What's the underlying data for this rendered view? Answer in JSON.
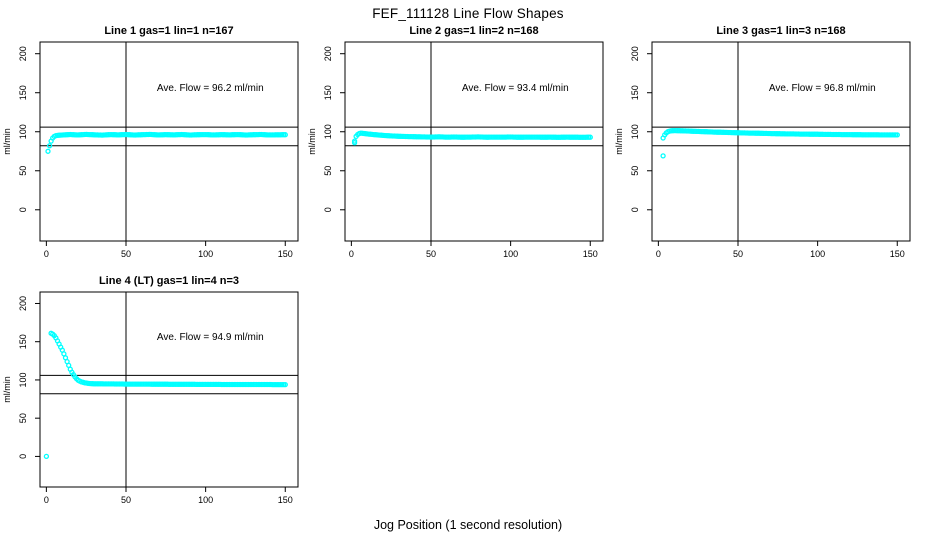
{
  "figure": {
    "title": "FEF_111128  Line Flow Shapes",
    "xlabel": "Jog Position (1 second resolution)"
  },
  "chart_data": {
    "type": "scatter",
    "marker_color": "#00FFFF",
    "line_color": "#000000",
    "shared_axes": {
      "xlim": [
        -4,
        158
      ],
      "ylim": [
        -40,
        215
      ],
      "x_ticks": [
        0,
        50,
        100,
        150
      ],
      "y_ticks": [
        0,
        50,
        100,
        150,
        200
      ],
      "ylabel": "ml/min"
    },
    "ref_lines": {
      "h_upper": 106,
      "h_lower": 82,
      "v": 50
    },
    "panels": [
      {
        "title": "Line 1 gas=1 lin=1 n=167",
        "annotation": "Ave. Flow =  96.2  ml/min",
        "ave_flow": 96.2,
        "keypoints": [
          [
            2,
            82
          ],
          [
            3,
            88
          ],
          [
            4,
            92
          ],
          [
            5,
            94
          ],
          [
            6,
            95
          ],
          [
            7,
            95.3
          ],
          [
            8,
            95.6
          ],
          [
            10,
            95.8
          ],
          [
            15,
            96.5
          ],
          [
            20,
            95.9
          ],
          [
            25,
            96.6
          ],
          [
            30,
            96.1
          ],
          [
            35,
            95.7
          ],
          [
            40,
            96.4
          ],
          [
            45,
            96.0
          ],
          [
            50,
            96.5
          ],
          [
            55,
            95.8
          ],
          [
            60,
            96.2
          ],
          [
            65,
            96.6
          ],
          [
            70,
            95.9
          ],
          [
            75,
            96.3
          ],
          [
            80,
            96.0
          ],
          [
            85,
            96.5
          ],
          [
            90,
            95.8
          ],
          [
            95,
            96.2
          ],
          [
            100,
            96.4
          ],
          [
            105,
            95.9
          ],
          [
            110,
            96.3
          ],
          [
            115,
            96.0
          ],
          [
            120,
            96.4
          ],
          [
            125,
            95.8
          ],
          [
            130,
            96.2
          ],
          [
            135,
            96.5
          ],
          [
            140,
            95.9
          ],
          [
            145,
            96.1
          ],
          [
            150,
            96.2
          ]
        ],
        "outliers": [
          [
            1,
            75
          ]
        ]
      },
      {
        "title": "Line 2 gas=1 lin=2 n=168",
        "annotation": "Ave. Flow =  93.4  ml/min",
        "ave_flow": 93.4,
        "keypoints": [
          [
            2,
            88
          ],
          [
            3,
            94
          ],
          [
            4,
            96.5
          ],
          [
            5,
            97.8
          ],
          [
            6,
            98.2
          ],
          [
            7,
            98
          ],
          [
            8,
            97.8
          ],
          [
            10,
            97.2
          ],
          [
            12,
            96.8
          ],
          [
            15,
            96.2
          ],
          [
            18,
            95.7
          ],
          [
            21,
            95.2
          ],
          [
            25,
            94.7
          ],
          [
            30,
            94.2
          ],
          [
            35,
            93.9
          ],
          [
            40,
            93.6
          ],
          [
            45,
            93.4
          ],
          [
            50,
            93.2
          ],
          [
            55,
            93.5
          ],
          [
            60,
            93.1
          ],
          [
            65,
            93.3
          ],
          [
            70,
            93.0
          ],
          [
            75,
            93.2
          ],
          [
            80,
            93.4
          ],
          [
            85,
            93.0
          ],
          [
            90,
            93.2
          ],
          [
            95,
            93.1
          ],
          [
            100,
            93.3
          ],
          [
            105,
            93.0
          ],
          [
            110,
            93.1
          ],
          [
            115,
            93.2
          ],
          [
            120,
            93.0
          ],
          [
            125,
            93.1
          ],
          [
            130,
            92.9
          ],
          [
            135,
            93.1
          ],
          [
            140,
            93.0
          ],
          [
            145,
            92.9
          ],
          [
            150,
            93.0
          ]
        ],
        "outliers": [
          [
            2,
            86
          ]
        ]
      },
      {
        "title": "Line 3 gas=1 lin=3 n=168",
        "annotation": "Ave. Flow =  96.8  ml/min",
        "ave_flow": 96.8,
        "keypoints": [
          [
            3,
            92
          ],
          [
            4,
            96
          ],
          [
            5,
            98.5
          ],
          [
            6,
            100
          ],
          [
            7,
            100.8
          ],
          [
            8,
            101.2
          ],
          [
            10,
            101.5
          ],
          [
            12,
            101.4
          ],
          [
            15,
            101.2
          ],
          [
            18,
            101.0
          ],
          [
            21,
            100.7
          ],
          [
            25,
            100.4
          ],
          [
            30,
            100.0
          ],
          [
            35,
            99.6
          ],
          [
            40,
            99.3
          ],
          [
            45,
            99.0
          ],
          [
            50,
            98.7
          ],
          [
            55,
            98.4
          ],
          [
            60,
            98.2
          ],
          [
            65,
            98.0
          ],
          [
            70,
            97.7
          ],
          [
            75,
            97.5
          ],
          [
            80,
            97.3
          ],
          [
            85,
            97.2
          ],
          [
            90,
            97.0
          ],
          [
            95,
            96.9
          ],
          [
            100,
            96.8
          ],
          [
            105,
            96.6
          ],
          [
            110,
            96.5
          ],
          [
            115,
            96.4
          ],
          [
            120,
            96.3
          ],
          [
            125,
            96.2
          ],
          [
            130,
            96.1
          ],
          [
            135,
            96.1
          ],
          [
            140,
            96.0
          ],
          [
            145,
            96.0
          ],
          [
            150,
            95.9
          ]
        ],
        "outliers": [
          [
            3,
            69
          ]
        ]
      },
      {
        "title": "Line 4 (LT) gas=1 lin=4 n=3",
        "annotation": "Ave. Flow =  94.9  ml/min",
        "ave_flow": 94.9,
        "keypoints": [
          [
            3,
            161
          ],
          [
            4,
            160
          ],
          [
            5,
            158
          ],
          [
            6,
            155
          ],
          [
            7,
            151
          ],
          [
            8,
            147
          ],
          [
            9,
            143
          ],
          [
            10,
            139
          ],
          [
            11,
            134
          ],
          [
            12,
            129
          ],
          [
            13,
            124
          ],
          [
            14,
            119
          ],
          [
            15,
            114
          ],
          [
            16,
            110
          ],
          [
            17,
            107
          ],
          [
            18,
            104
          ],
          [
            19,
            101.5
          ],
          [
            20,
            99.5
          ],
          [
            22,
            97.5
          ],
          [
            24,
            96.3
          ],
          [
            26,
            95.6
          ],
          [
            28,
            95.2
          ],
          [
            30,
            95.0
          ],
          [
            35,
            94.9
          ],
          [
            40,
            94.8
          ],
          [
            45,
            94.7
          ],
          [
            50,
            94.6
          ],
          [
            55,
            94.6
          ],
          [
            60,
            94.5
          ],
          [
            65,
            94.5
          ],
          [
            70,
            94.4
          ],
          [
            75,
            94.4
          ],
          [
            80,
            94.3
          ],
          [
            85,
            94.3
          ],
          [
            90,
            94.3
          ],
          [
            95,
            94.2
          ],
          [
            100,
            94.2
          ],
          [
            105,
            94.2
          ],
          [
            110,
            94.1
          ],
          [
            115,
            94.1
          ],
          [
            120,
            94.1
          ],
          [
            125,
            94.0
          ],
          [
            130,
            94.0
          ],
          [
            135,
            94.0
          ],
          [
            140,
            94.0
          ],
          [
            145,
            93.9
          ],
          [
            150,
            93.9
          ]
        ],
        "outliers": [
          [
            0,
            0
          ]
        ]
      }
    ]
  }
}
